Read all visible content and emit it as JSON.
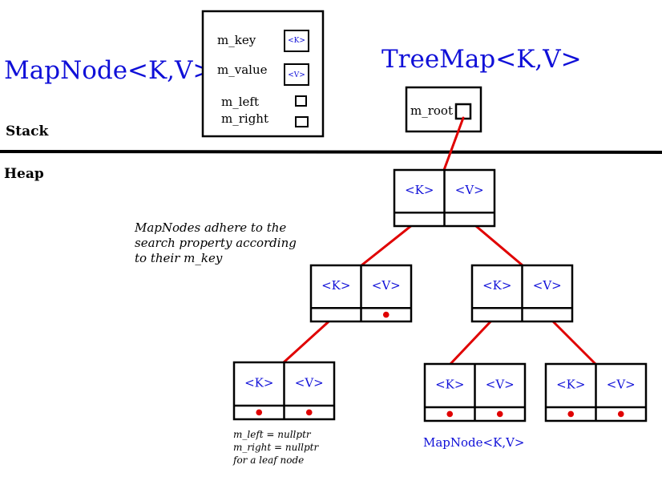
{
  "colors": {
    "accent_blue": "#1010d8",
    "link_red": "#e00000",
    "ink": "#000000"
  },
  "title_mapnode": "MapNode<K,V>",
  "title_treemap": "TreeMap<K,V>",
  "legend_box": {
    "key_label": "m_key",
    "key_type": "<K>",
    "value_label": "m_value",
    "value_type": "<V>",
    "left_label": "m_left",
    "right_label": "m_right"
  },
  "treemap_box": {
    "root_label": "m_root"
  },
  "region_labels": {
    "stack": "Stack",
    "heap": "Heap"
  },
  "node_key": "<K>",
  "node_value": "<V>",
  "note_search": [
    "MapNodes adhere to the",
    "search property according",
    "to their m_key"
  ],
  "note_leaf": [
    "m_left = nullptr",
    "m_right = nullptr",
    "for a leaf node"
  ],
  "leaf_caption": "MapNode<K,V>"
}
